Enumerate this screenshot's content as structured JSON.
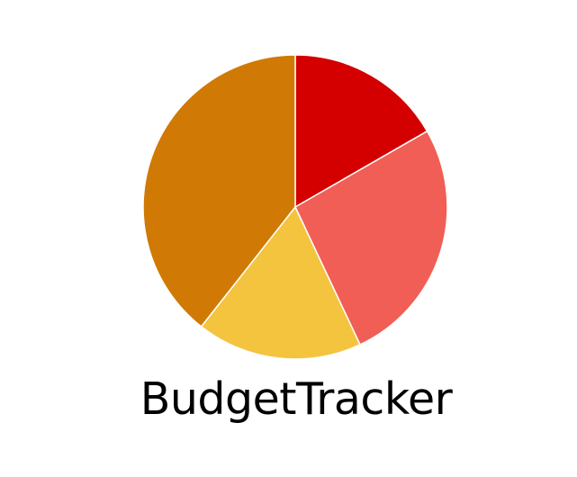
{
  "app": {
    "name": "BudgetTracker"
  },
  "logo": {
    "icon": "pie-chart-icon",
    "slices": [
      {
        "share": 0.167,
        "color": "#d40000"
      },
      {
        "share": 0.263,
        "color": "#f15e55"
      },
      {
        "share": 0.176,
        "color": "#f4c43e"
      },
      {
        "share": 0.394,
        "color": "#d07a05"
      }
    ]
  }
}
